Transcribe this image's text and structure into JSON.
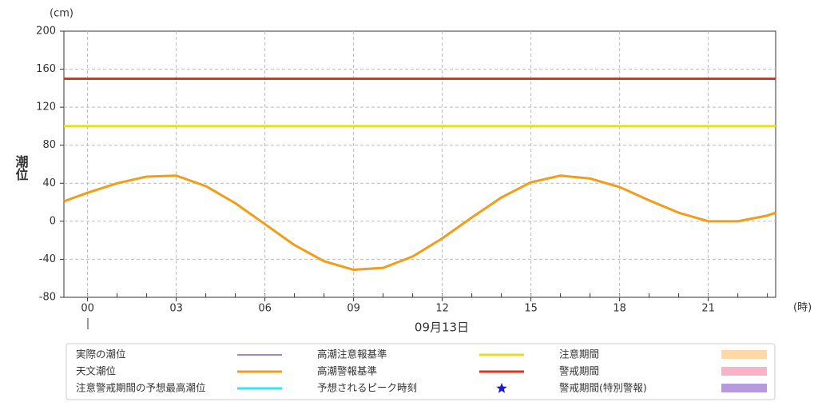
{
  "chart_data": {
    "type": "line",
    "y_unit": "(cm)",
    "ylabel": "潮位",
    "x_unit": "(時)",
    "xlabel": "09月13日",
    "xlim": [
      -0.8,
      23.28
    ],
    "ylim": [
      -80,
      200
    ],
    "yticks": [
      -80,
      -40,
      0,
      40,
      80,
      120,
      160,
      200
    ],
    "xticks": [
      {
        "value": 0,
        "label": "00"
      },
      {
        "value": 3,
        "label": "03"
      },
      {
        "value": 6,
        "label": "06"
      },
      {
        "value": 9,
        "label": "09"
      },
      12,
      15,
      18,
      21
    ],
    "xminorticks": [
      0,
      1,
      2,
      3,
      4,
      5,
      6,
      7,
      8,
      9,
      10,
      11,
      12,
      13,
      14,
      15,
      16,
      17,
      18,
      19,
      20,
      21,
      22,
      23
    ],
    "grid": true,
    "series": [
      {
        "name": "実際の潮位",
        "color": "#7b5fc0",
        "symbol": "line"
      },
      {
        "name": "天文潮位",
        "color": "#f39c1a",
        "symbol": "line",
        "x": [
          -0.8,
          0,
          1,
          2,
          3,
          4,
          5,
          6,
          7,
          8,
          9,
          10,
          11,
          12,
          13,
          14,
          15,
          16,
          17,
          18,
          19,
          20,
          21,
          22,
          23,
          23.28
        ],
        "values": [
          21,
          30,
          40,
          47,
          48,
          37,
          19,
          -3,
          -25,
          -42,
          -51,
          -49,
          -37,
          -18,
          4,
          25,
          41,
          48,
          45,
          36,
          22,
          9,
          0,
          0,
          6,
          9
        ]
      },
      {
        "name": "注意警戒期間の予想最高潮位",
        "color": "#33e6e6",
        "symbol": "line"
      },
      {
        "name": "高潮注意報基準",
        "color": "#e6e01a",
        "symbol": "line",
        "value": 100
      },
      {
        "name": "高潮警報基準",
        "color": "#e0301e",
        "symbol": "line",
        "value": 150
      },
      {
        "name": "予想されるピーク時刻",
        "color": "#1a1acc",
        "symbol": "star"
      },
      {
        "name": "注意期間",
        "color": "#fbd9a8",
        "symbol": "band"
      },
      {
        "name": "警戒期間",
        "color": "#f9b3c8",
        "symbol": "band"
      },
      {
        "name": "警戒期間(特別警報)",
        "color": "#b59ae0",
        "symbol": "band"
      }
    ]
  }
}
